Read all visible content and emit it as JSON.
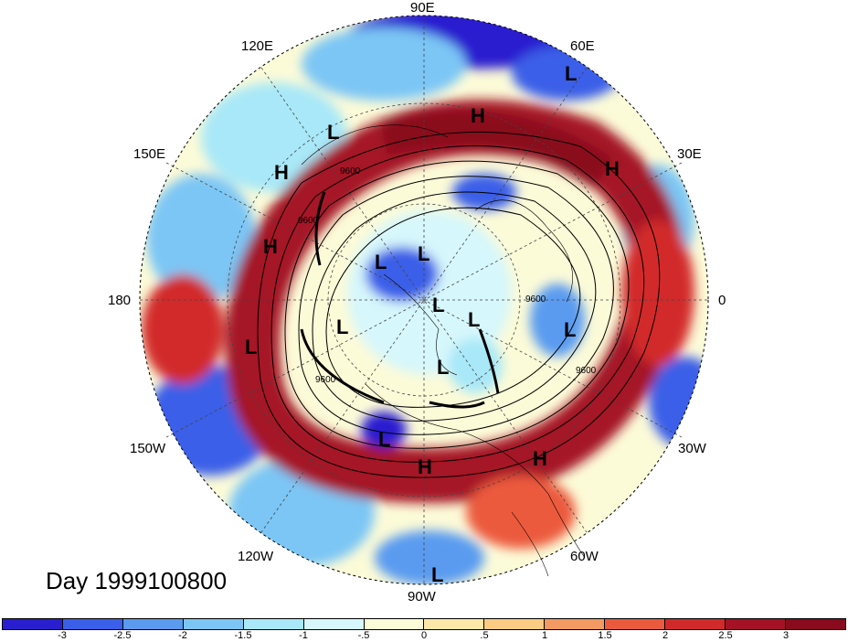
{
  "date_label": "Day 1999100800",
  "longitude_labels": [
    {
      "id": "lon-90e",
      "text": "90E"
    },
    {
      "id": "lon-60e",
      "text": "60E"
    },
    {
      "id": "lon-120e",
      "text": "120E"
    },
    {
      "id": "lon-30e",
      "text": "30E"
    },
    {
      "id": "lon-150e",
      "text": "150E"
    },
    {
      "id": "lon-180",
      "text": "180"
    },
    {
      "id": "lon-0",
      "text": "0"
    },
    {
      "id": "lon-150w",
      "text": "150W"
    },
    {
      "id": "lon-30w",
      "text": "30W"
    },
    {
      "id": "lon-120w",
      "text": "120W"
    },
    {
      "id": "lon-60w",
      "text": "60W"
    },
    {
      "id": "lon-90w",
      "text": "90W"
    }
  ],
  "pressure_systems": [
    {
      "id": "h1",
      "type": "H"
    },
    {
      "id": "h2",
      "type": "H"
    },
    {
      "id": "h3",
      "type": "H"
    },
    {
      "id": "h4",
      "type": "H"
    },
    {
      "id": "h5",
      "type": "H"
    },
    {
      "id": "h6",
      "type": "H"
    },
    {
      "id": "l1",
      "type": "L"
    },
    {
      "id": "l2",
      "type": "L"
    },
    {
      "id": "l3",
      "type": "L"
    },
    {
      "id": "l4",
      "type": "L"
    },
    {
      "id": "l5",
      "type": "L"
    },
    {
      "id": "l6",
      "type": "L"
    },
    {
      "id": "l7",
      "type": "L"
    },
    {
      "id": "l8",
      "type": "L"
    },
    {
      "id": "l9",
      "type": "L"
    },
    {
      "id": "l10",
      "type": "L"
    },
    {
      "id": "l11",
      "type": "L"
    },
    {
      "id": "l12",
      "type": "L"
    }
  ],
  "contour_labels": [
    "9600",
    "9600",
    "9600",
    "9600",
    "9600"
  ],
  "colorbar": {
    "tick_labels": [
      "-3",
      "-2.5",
      "-2",
      "-1.5",
      "-1",
      "-.5",
      "0",
      ".5",
      "1",
      "1.5",
      "2",
      "2.5",
      "3"
    ],
    "colors": [
      "#2a1fcf",
      "#3a5fe8",
      "#5a9bf0",
      "#7cc6f5",
      "#a8e8f8",
      "#d6f7fb",
      "#fcfbd8",
      "#fde8a8",
      "#fbcb84",
      "#f39a62",
      "#ec5a3e",
      "#d22a2a",
      "#a51225",
      "#8a0a1e"
    ]
  }
}
